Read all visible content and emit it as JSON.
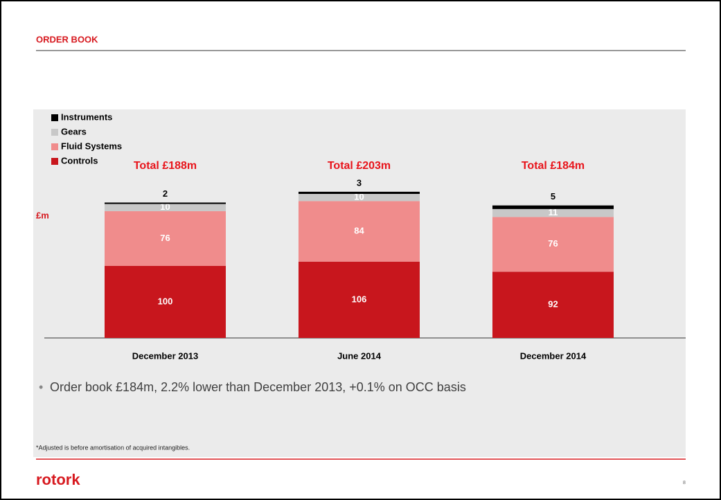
{
  "header": {
    "title": "ORDER BOOK"
  },
  "chart_data": {
    "type": "stacked_bar",
    "y_label": "£m",
    "categories": [
      "December 2013",
      "June 2014",
      "December 2014"
    ],
    "series": [
      {
        "name": "Controls",
        "color": "#c8161d",
        "values": [
          100,
          106,
          92
        ]
      },
      {
        "name": "Fluid Systems",
        "color": "#f08c8c",
        "values": [
          76,
          84,
          76
        ]
      },
      {
        "name": "Gears",
        "color": "#c8c8c8",
        "values": [
          10,
          10,
          11
        ]
      },
      {
        "name": "Instruments",
        "color": "#000000",
        "values": [
          2,
          3,
          5
        ]
      }
    ],
    "annotations": [
      "Total £188m",
      "Total £203m",
      "Total £184m"
    ],
    "ylim": [
      0,
      250
    ],
    "legend": "top-left"
  },
  "bullets": [
    "Order book £184m, 2.2% lower than December 2013, +0.1% on OCC basis"
  ],
  "footnote": "*Adjusted is before amortisation of acquired intangibles.",
  "logo": "rotork",
  "page_number": "8"
}
